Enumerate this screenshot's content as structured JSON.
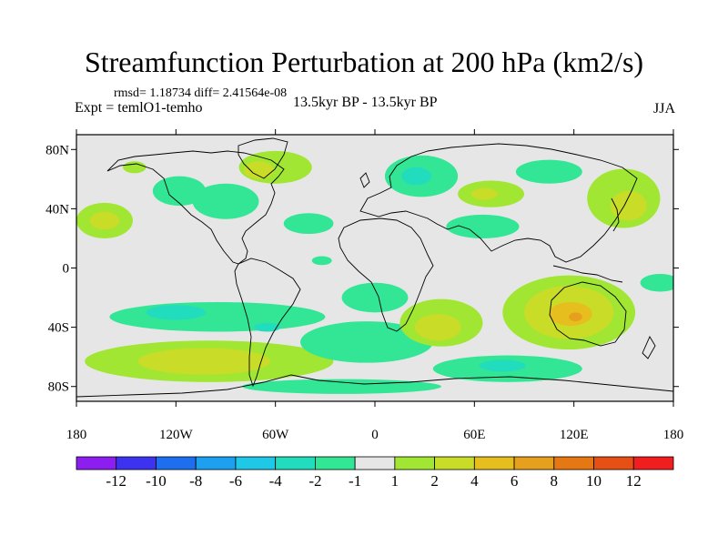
{
  "chart_data": {
    "type": "heatmap",
    "title": "Streamfunction Perturbation at 200 hPa (km2/s)",
    "stats": "rmsd= 1.18734 diff= 2.41564e-08",
    "experiment": "Expt = temlO1-temho",
    "period": "13.5kyr BP - 13.5kyr BP",
    "season": "JJA",
    "x_ticks": [
      "180",
      "120W",
      "60W",
      "0",
      "60E",
      "120E",
      "180"
    ],
    "x_tick_values": [
      -180,
      -120,
      -60,
      0,
      60,
      120,
      180
    ],
    "y_ticks": [
      "80N",
      "40N",
      "0",
      "40S",
      "80S"
    ],
    "y_tick_values": [
      80,
      40,
      0,
      -40,
      -80
    ],
    "xlim": [
      -180,
      180
    ],
    "ylim": [
      -90,
      90
    ],
    "colorbar": {
      "labels": [
        "-12",
        "-10",
        "-8",
        "-6",
        "-4",
        "-2",
        "-1",
        "1",
        "2",
        "4",
        "6",
        "8",
        "10",
        "12"
      ],
      "colors": [
        "#8c1ef0",
        "#3c32f0",
        "#1e6ef0",
        "#1ea0f0",
        "#1ec8e6",
        "#22dcbe",
        "#32e696",
        "#e6e6e6",
        "#a0e632",
        "#c8dc28",
        "#e6be1e",
        "#e6a01e",
        "#e67814",
        "#e65014",
        "#f01e1e"
      ]
    },
    "regions": [
      {
        "name": "n-atlantic-green",
        "lon": -60,
        "lat": 68,
        "rlon": 22,
        "rlat": 11,
        "color": "#a0e632"
      },
      {
        "name": "n-atlantic-yellow",
        "lon": -70,
        "lat": 66,
        "rlon": 9,
        "rlat": 6,
        "color": "#c8dc28"
      },
      {
        "name": "n-america-green",
        "lon": -90,
        "lat": 45,
        "rlon": 20,
        "rlat": 12,
        "color": "#32e696"
      },
      {
        "name": "alaska-green",
        "lon": -145,
        "lat": 68,
        "rlon": 7,
        "rlat": 4,
        "color": "#a0e632"
      },
      {
        "name": "pacific-ne-green",
        "lon": -118,
        "lat": 52,
        "rlon": 16,
        "rlat": 10,
        "color": "#32e696"
      },
      {
        "name": "ne-pacific-green",
        "lon": -163,
        "lat": 32,
        "rlon": 17,
        "rlat": 12,
        "color": "#a0e632"
      },
      {
        "name": "ne-pacific-yellow",
        "lon": -163,
        "lat": 32,
        "rlon": 9,
        "rlat": 6,
        "color": "#c8dc28"
      },
      {
        "name": "atlantic-center-green",
        "lon": -40,
        "lat": 30,
        "rlon": 15,
        "rlat": 7,
        "color": "#32e696"
      },
      {
        "name": "atlantic-south-green",
        "lon": -32,
        "lat": 5,
        "rlon": 6,
        "rlat": 3,
        "color": "#32e696"
      },
      {
        "name": "scandinavia-green",
        "lon": 28,
        "lat": 62,
        "rlon": 22,
        "rlat": 14,
        "color": "#32e696"
      },
      {
        "name": "scandinavia-cyan",
        "lon": 25,
        "lat": 62,
        "rlon": 9,
        "rlat": 6,
        "color": "#22dcbe"
      },
      {
        "name": "mideast-green",
        "lon": 70,
        "lat": 50,
        "rlon": 20,
        "rlat": 9,
        "color": "#a0e632"
      },
      {
        "name": "mideast-yellow",
        "lon": 66,
        "lat": 50,
        "rlon": 8,
        "rlat": 4,
        "color": "#c8dc28"
      },
      {
        "name": "siberia-green",
        "lon": 105,
        "lat": 65,
        "rlon": 20,
        "rlat": 8,
        "color": "#32e696"
      },
      {
        "name": "arabia-green",
        "lon": 65,
        "lat": 28,
        "rlon": 22,
        "rlat": 8,
        "color": "#32e696"
      },
      {
        "name": "nw-pacific-green",
        "lon": 150,
        "lat": 47,
        "rlon": 22,
        "rlat": 20,
        "color": "#a0e632"
      },
      {
        "name": "nw-pacific-yellow",
        "lon": 153,
        "lat": 42,
        "rlon": 11,
        "rlat": 10,
        "color": "#c8dc28"
      },
      {
        "name": "pacific-sw-green",
        "lon": -95,
        "lat": -33,
        "rlon": 65,
        "rlat": 10,
        "color": "#32e696"
      },
      {
        "name": "pacific-sw-cyan",
        "lon": -120,
        "lat": -30,
        "rlon": 18,
        "rlat": 5,
        "color": "#22dcbe"
      },
      {
        "name": "south-pacific-green",
        "lon": -100,
        "lat": -63,
        "rlon": 75,
        "rlat": 14,
        "color": "#a0e632"
      },
      {
        "name": "south-pacific-yellow",
        "lon": -103,
        "lat": -63,
        "rlon": 40,
        "rlat": 9,
        "color": "#c8dc28"
      },
      {
        "name": "s-atlantic-green",
        "lon": -5,
        "lat": -50,
        "rlon": 40,
        "rlat": 14,
        "color": "#32e696"
      },
      {
        "name": "africa-green",
        "lon": 0,
        "lat": -20,
        "rlon": 20,
        "rlat": 10,
        "color": "#32e696"
      },
      {
        "name": "s-africa-green",
        "lon": 40,
        "lat": -37,
        "rlon": 25,
        "rlat": 16,
        "color": "#a0e632"
      },
      {
        "name": "s-africa-yellow",
        "lon": 38,
        "lat": -40,
        "rlon": 14,
        "rlat": 9,
        "color": "#c8dc28"
      },
      {
        "name": "s-indian-green",
        "lon": 80,
        "lat": -68,
        "rlon": 45,
        "rlat": 9,
        "color": "#32e696"
      },
      {
        "name": "s-indian-cyan",
        "lon": 77,
        "lat": -66,
        "rlon": 14,
        "rlat": 4,
        "color": "#22dcbe"
      },
      {
        "name": "australia-green",
        "lon": 117,
        "lat": -30,
        "rlon": 40,
        "rlat": 25,
        "color": "#a0e632"
      },
      {
        "name": "australia-yellow",
        "lon": 117,
        "lat": -30,
        "rlon": 27,
        "rlat": 18,
        "color": "#c8dc28"
      },
      {
        "name": "australia-orange",
        "lon": 118,
        "lat": -31,
        "rlon": 13,
        "rlat": 8,
        "color": "#e6be1e"
      },
      {
        "name": "australia-red",
        "lon": 121,
        "lat": -33,
        "rlon": 4,
        "rlat": 3,
        "color": "#e6a01e"
      },
      {
        "name": "e-pacific-green",
        "lon": 172,
        "lat": -10,
        "rlon": 12,
        "rlat": 6,
        "color": "#32e696"
      },
      {
        "name": "antarctic-green",
        "lon": -20,
        "lat": -80,
        "rlon": 60,
        "rlat": 5,
        "color": "#32e696"
      },
      {
        "name": "pacific-far-cyan",
        "lon": -65,
        "lat": -40,
        "rlon": 8,
        "rlat": 3,
        "color": "#22dcbe"
      }
    ]
  }
}
